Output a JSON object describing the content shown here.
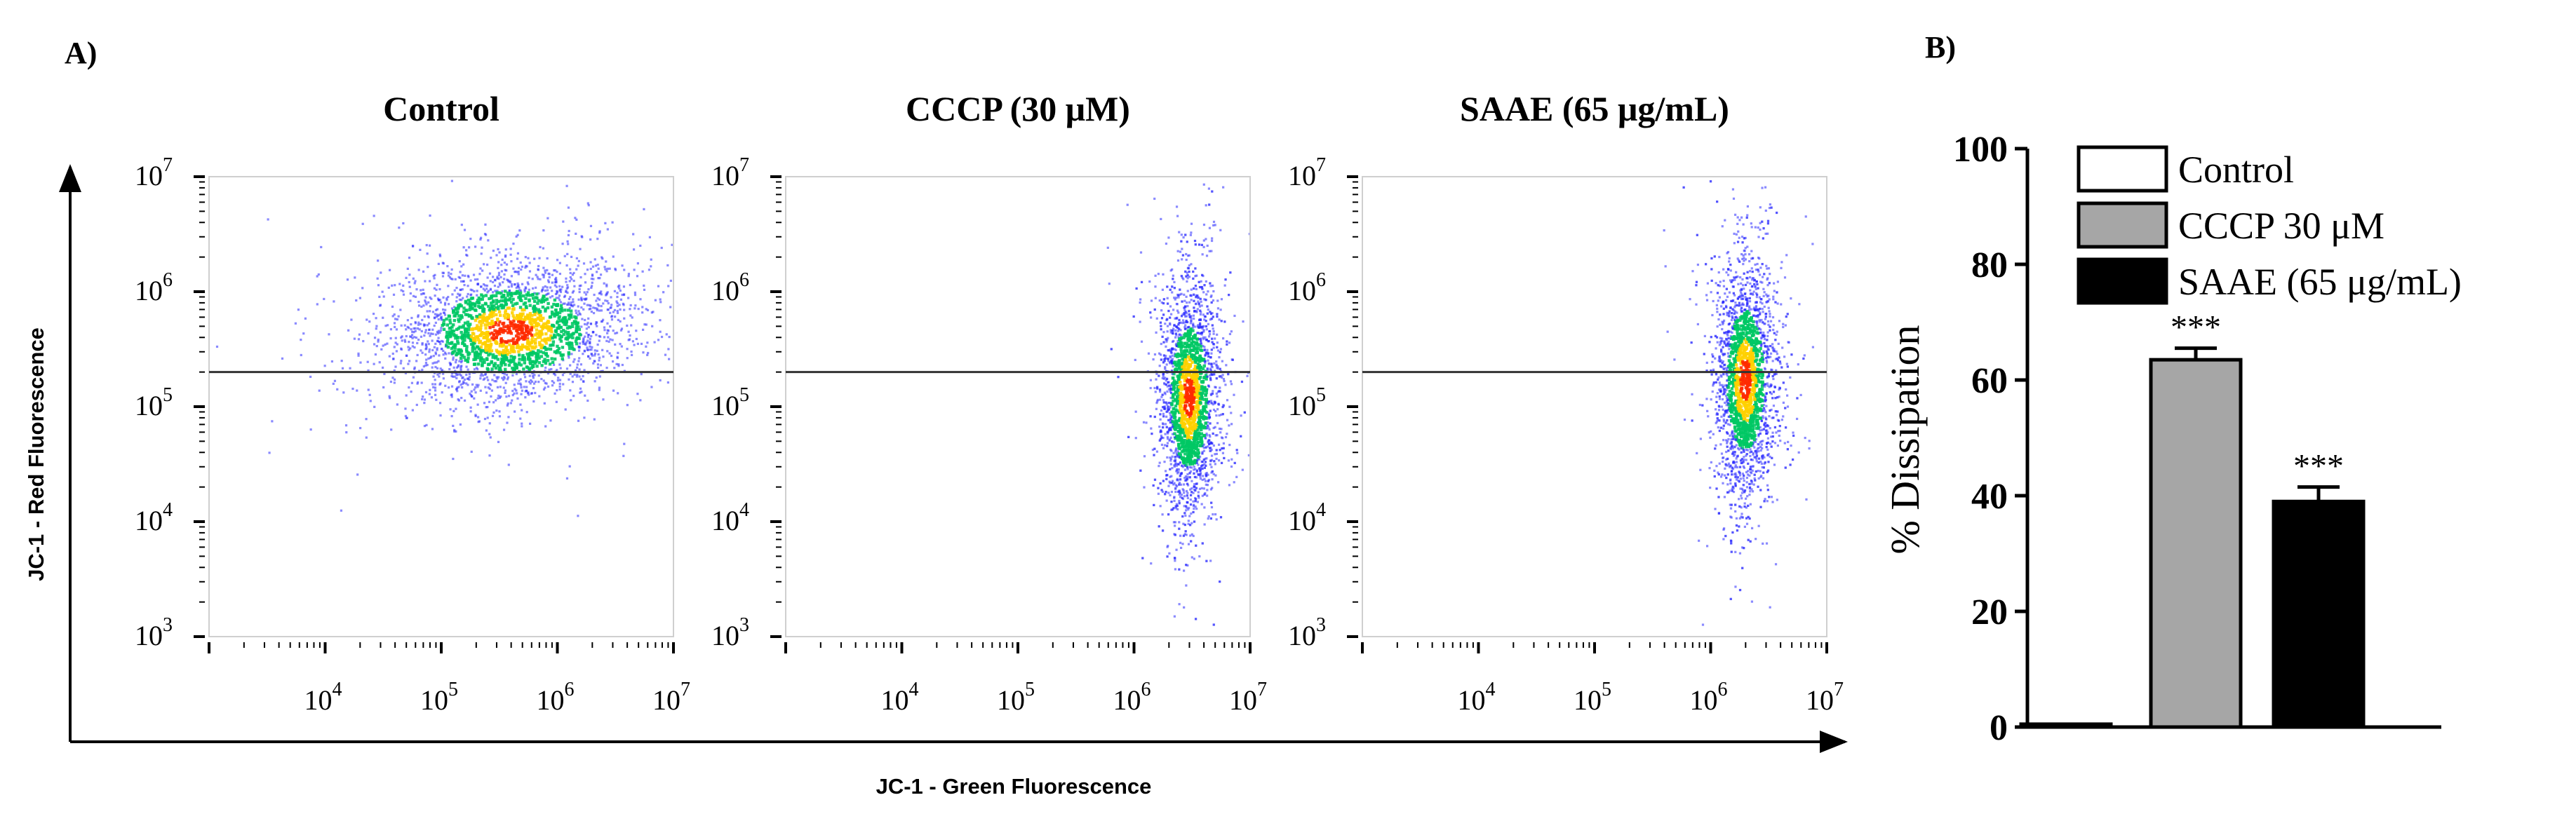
{
  "panel_a": {
    "label": "A)",
    "y_axis_label": "JC-1 - Red Fluorescence",
    "x_axis_label": "JC-1 - Green Fluorescence",
    "y_tick_labels": [
      "10",
      "10",
      "10",
      "10",
      "10"
    ],
    "y_tick_exponents": [
      "7",
      "6",
      "5",
      "4",
      "3"
    ],
    "x_tick_labels": [
      "10",
      "10",
      "10",
      "10"
    ],
    "x_tick_exponents": [
      "4",
      "5",
      "6",
      "7"
    ],
    "plots": [
      {
        "title": "Control"
      },
      {
        "title": "CCCP (30 μM)"
      },
      {
        "title": "SAAE (65 μg/mL)"
      }
    ]
  },
  "chart_data": [
    {
      "type": "scatter",
      "subtype": "flow-cytometry-density",
      "xlabel": "JC-1 - Green Fluorescence",
      "ylabel": "JC-1 - Red Fluorescence",
      "x_scale": "log",
      "y_scale": "log",
      "xlim": [
        1000,
        10000000
      ],
      "ylim": [
        1000,
        10000000
      ],
      "gate_y": 200000,
      "colors": [
        "#2a2aff",
        "#00c864",
        "#ffd000",
        "#ff2a00"
      ],
      "populations": [
        {
          "title": "Control",
          "center": [
            400000,
            450000
          ],
          "spread": "wide horizontal"
        },
        {
          "title": "CCCP (30 μM)",
          "center": [
            3000000,
            120000
          ],
          "spread": "vertical"
        },
        {
          "title": "SAAE (65 μg/mL)",
          "center": [
            2000000,
            170000
          ],
          "spread": "vertical"
        }
      ]
    },
    {
      "type": "bar",
      "label": "B)",
      "ylabel": "% Dissipation",
      "ylim": [
        0,
        100
      ],
      "y_ticks": [
        0,
        20,
        40,
        60,
        80,
        100
      ],
      "categories": [
        "Control",
        "CCCP 30 μM",
        "SAAE (65 μg/mL)"
      ],
      "values": [
        0.5,
        63.5,
        39
      ],
      "errors": [
        0,
        2,
        2.5
      ],
      "annotations": [
        "",
        "***",
        "***"
      ],
      "fill_colors": [
        "#ffffff",
        "#a6a6a6",
        "#000000"
      ],
      "legend": [
        "Control",
        "CCCP 30 μM",
        "SAAE (65 μg/mL)"
      ],
      "legend_position": "top-right"
    }
  ]
}
